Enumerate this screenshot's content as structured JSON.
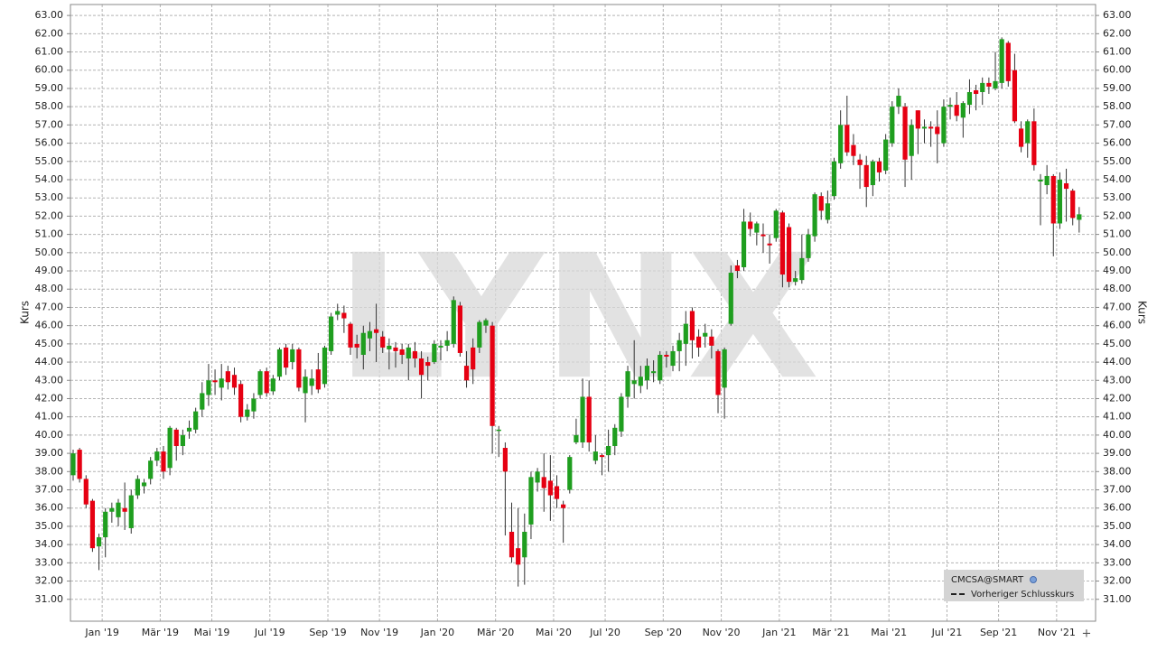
{
  "chart_data": {
    "type": "candlestick",
    "watermark": "LYNX",
    "y_label": "Kurs",
    "y2_label": "Kurs",
    "up_color": "#1f9e1f",
    "down_color": "#e60012",
    "grid": true,
    "legend_position": "lower right",
    "reference_line_label": "Vorheriger Schlusskurs",
    "categories": [
      null,
      null,
      null,
      null,
      "Jan '19",
      null,
      null,
      null,
      null,
      null,
      null,
      null,
      null,
      "Mär '19",
      null,
      null,
      null,
      null,
      null,
      null,
      null,
      "Mai '19",
      null,
      null,
      null,
      null,
      null,
      null,
      null,
      null,
      "Jul '19",
      null,
      null,
      null,
      null,
      null,
      null,
      null,
      null,
      "Sep '19",
      null,
      null,
      null,
      null,
      null,
      null,
      null,
      "Nov '19",
      null,
      null,
      null,
      null,
      null,
      null,
      null,
      null,
      "Jan '20",
      null,
      null,
      null,
      null,
      null,
      null,
      null,
      null,
      "Mär '20",
      null,
      null,
      null,
      null,
      null,
      null,
      null,
      null,
      "Mai '20",
      null,
      null,
      null,
      null,
      null,
      null,
      null,
      "Jul '20",
      null,
      null,
      null,
      null,
      null,
      null,
      null,
      null,
      "Sep '20",
      null,
      null,
      null,
      null,
      null,
      null,
      null,
      null,
      "Nov '20",
      null,
      null,
      null,
      null,
      null,
      null,
      null,
      null,
      "Jan '21",
      null,
      null,
      null,
      null,
      null,
      null,
      null,
      "Mär '21",
      null,
      null,
      null,
      null,
      null,
      null,
      null,
      null,
      "Mai '21",
      null,
      null,
      null,
      null,
      null,
      null,
      null,
      null,
      "Jul '21",
      null,
      null,
      null,
      null,
      null,
      null,
      null,
      "Sep '21",
      null,
      null,
      null,
      null,
      null,
      null,
      null,
      null,
      "Nov '21",
      null,
      null,
      null,
      null
    ],
    "series": [
      {
        "name": "CMCSA@SMART",
        "open": [
          37.8,
          39.2,
          37.6,
          36.4,
          33.9,
          34.4,
          35.8,
          35.5,
          36.0,
          34.9,
          36.7,
          37.2,
          37.6,
          38.6,
          39.1,
          38.2,
          40.3,
          39.4,
          40.2,
          40.3,
          41.4,
          42.2,
          43.0,
          42.6,
          43.5,
          43.3,
          42.8,
          41.0,
          41.3,
          42.2,
          43.5,
          42.4,
          43.2,
          44.8,
          44.0,
          44.7,
          42.3,
          42.7,
          43.6,
          42.8,
          44.6,
          46.6,
          46.7,
          46.1,
          45.0,
          44.4,
          45.3,
          45.8,
          45.4,
          44.7,
          44.8,
          44.7,
          44.2,
          44.6,
          44.2,
          44.0,
          44.0,
          44.8,
          44.9,
          45.0,
          47.1,
          43.8,
          44.8,
          44.8,
          46.0,
          46.0,
          40.3,
          39.3,
          34.7,
          33.8,
          33.3,
          35.1,
          37.4,
          37.7,
          37.5,
          37.2,
          36.2,
          37.0,
          39.6,
          39.6,
          42.1,
          38.6,
          38.9,
          38.9,
          39.4,
          40.2,
          42.1,
          42.8,
          42.7,
          43.0,
          43.4,
          43.0,
          44.4,
          43.8,
          44.6,
          45.0,
          46.8,
          45.4,
          45.4,
          45.4,
          44.6,
          42.6,
          46.1,
          49.3,
          49.2,
          51.7,
          51.1,
          51.0,
          50.5,
          50.8,
          52.2,
          51.4,
          48.4,
          48.5,
          49.7,
          50.9,
          53.1,
          51.8,
          53.1,
          54.9,
          57.0,
          55.9,
          55.1,
          54.8,
          53.7,
          55.0,
          54.5,
          56.0,
          58.0,
          58.0,
          55.3,
          57.8,
          56.8,
          56.9,
          56.9,
          56.0,
          58.0,
          58.1,
          57.4,
          58.1,
          58.9,
          58.8,
          59.3,
          59.0,
          59.3,
          61.5,
          60.0,
          56.8,
          56.0,
          57.2,
          53.9,
          53.7,
          54.2,
          51.6,
          53.8,
          53.4,
          51.8
        ],
        "high": [
          39.2,
          39.3,
          37.8,
          36.5,
          34.6,
          36.0,
          36.3,
          36.5,
          37.4,
          37.0,
          37.8,
          37.6,
          38.8,
          39.3,
          39.4,
          40.5,
          40.4,
          40.3,
          40.8,
          41.5,
          42.9,
          43.9,
          43.6,
          43.9,
          43.8,
          43.7,
          43.0,
          41.7,
          42.3,
          43.6,
          43.7,
          43.3,
          44.8,
          45.0,
          45.0,
          44.8,
          43.6,
          43.6,
          44.5,
          44.9,
          46.7,
          47.2,
          47.1,
          46.2,
          45.5,
          46.0,
          46.2,
          47.2,
          45.7,
          45.3,
          45.1,
          45.0,
          45.0,
          45.1,
          44.6,
          44.3,
          45.2,
          45.2,
          45.7,
          47.6,
          47.3,
          44.6,
          45.3,
          46.3,
          46.4,
          46.2,
          40.5,
          39.6,
          36.3,
          36.0,
          35.7,
          38.0,
          38.2,
          39.0,
          38.9,
          37.8,
          36.4,
          38.9,
          40.9,
          43.1,
          43.0,
          40.0,
          39.0,
          40.3,
          40.6,
          42.3,
          43.8,
          45.2,
          43.8,
          44.2,
          44.1,
          44.6,
          44.6,
          44.9,
          45.6,
          46.8,
          47.0,
          45.8,
          46.1,
          45.8,
          44.7,
          44.8,
          49.3,
          49.6,
          52.4,
          52.2,
          51.7,
          51.6,
          51.0,
          52.4,
          52.3,
          51.6,
          49.0,
          51.0,
          51.3,
          53.3,
          53.3,
          53.4,
          55.2,
          57.8,
          58.6,
          56.5,
          55.4,
          55.3,
          55.1,
          55.2,
          56.5,
          58.3,
          59.0,
          58.2,
          57.3,
          57.8,
          57.3,
          57.2,
          57.8,
          58.4,
          58.5,
          58.8,
          58.3,
          59.5,
          59.2,
          59.6,
          59.6,
          61.0,
          61.8,
          61.6,
          60.9,
          57.2,
          57.3,
          57.9,
          54.3,
          54.8,
          54.3,
          54.4,
          54.6,
          53.5,
          52.5
        ],
        "low": [
          37.5,
          37.4,
          36.0,
          33.6,
          32.6,
          33.3,
          35.2,
          35.0,
          34.8,
          34.6,
          36.5,
          36.8,
          37.3,
          38.3,
          37.6,
          37.8,
          38.6,
          38.9,
          39.8,
          40.1,
          41.0,
          41.6,
          42.2,
          41.9,
          42.5,
          42.2,
          40.7,
          40.8,
          40.9,
          42.0,
          42.1,
          42.2,
          43.0,
          43.3,
          43.6,
          42.4,
          40.7,
          42.2,
          42.3,
          42.6,
          44.4,
          46.3,
          45.6,
          44.4,
          44.2,
          43.6,
          44.6,
          44.0,
          44.5,
          43.6,
          43.7,
          43.9,
          43.0,
          43.7,
          42.0,
          43.0,
          43.9,
          44.1,
          44.6,
          44.8,
          44.3,
          42.6,
          42.8,
          44.5,
          45.6,
          39.0,
          38.8,
          34.5,
          33.0,
          31.7,
          31.8,
          34.3,
          36.9,
          35.8,
          35.3,
          36.0,
          34.1,
          36.8,
          39.5,
          39.3,
          39.1,
          38.4,
          37.8,
          38.0,
          38.9,
          39.9,
          41.5,
          42.0,
          42.3,
          42.5,
          42.9,
          42.8,
          43.7,
          43.5,
          43.5,
          43.8,
          44.2,
          44.3,
          44.8,
          44.2,
          41.2,
          40.9,
          46.0,
          48.6,
          49.0,
          50.9,
          50.4,
          50.0,
          49.4,
          50.6,
          48.1,
          48.1,
          48.2,
          48.3,
          49.5,
          50.6,
          51.8,
          51.6,
          52.9,
          54.6,
          55.3,
          54.8,
          53.5,
          52.5,
          53.1,
          53.9,
          54.3,
          55.8,
          57.6,
          53.6,
          54.0,
          55.4,
          56.0,
          55.8,
          54.9,
          55.8,
          57.3,
          57.2,
          56.3,
          57.6,
          57.8,
          58.1,
          58.7,
          58.9,
          59.0,
          59.1,
          57.1,
          55.5,
          55.2,
          54.5,
          51.5,
          53.2,
          49.8,
          51.3,
          51.7,
          51.5,
          51.1
        ],
        "close": [
          39.0,
          37.6,
          36.2,
          33.8,
          34.4,
          35.8,
          36.0,
          36.3,
          35.8,
          36.7,
          37.6,
          37.4,
          38.6,
          39.1,
          38.0,
          40.4,
          39.4,
          40.0,
          40.4,
          41.3,
          42.3,
          43.0,
          42.9,
          43.1,
          42.9,
          42.6,
          41.0,
          41.4,
          42.0,
          43.5,
          42.3,
          43.1,
          44.7,
          43.7,
          44.7,
          42.6,
          43.2,
          43.1,
          42.5,
          44.8,
          46.5,
          46.8,
          46.4,
          44.8,
          44.8,
          45.6,
          45.7,
          45.6,
          44.8,
          44.9,
          44.6,
          44.4,
          44.8,
          44.2,
          43.3,
          43.8,
          45.0,
          44.9,
          45.2,
          47.4,
          44.5,
          43.0,
          43.6,
          46.2,
          46.3,
          40.5,
          40.3,
          38.0,
          33.3,
          32.9,
          34.7,
          37.7,
          38.0,
          37.1,
          36.7,
          36.5,
          36.0,
          38.8,
          40.0,
          42.1,
          39.6,
          39.1,
          38.8,
          39.4,
          40.4,
          42.1,
          43.5,
          43.0,
          43.2,
          43.8,
          43.5,
          44.4,
          44.3,
          44.6,
          45.2,
          46.1,
          45.2,
          44.8,
          45.6,
          44.9,
          42.2,
          44.7,
          48.9,
          49.0,
          51.7,
          51.3,
          51.6,
          50.9,
          50.4,
          52.3,
          48.8,
          48.4,
          48.6,
          49.7,
          51.0,
          53.2,
          52.3,
          52.7,
          55.0,
          57.0,
          55.5,
          55.3,
          54.8,
          53.6,
          55.0,
          54.4,
          56.2,
          58.0,
          58.6,
          55.1,
          57.0,
          56.8,
          56.9,
          56.8,
          56.5,
          58.0,
          58.1,
          57.5,
          58.2,
          58.8,
          58.7,
          59.3,
          59.1,
          59.4,
          61.7,
          59.4,
          57.2,
          55.8,
          57.2,
          54.8,
          54.0,
          54.2,
          51.6,
          54.0,
          53.5,
          51.9,
          52.1
        ]
      }
    ],
    "ylim": [
      29.8,
      63.6
    ],
    "yticks": [
      {
        "value": 31,
        "label": "31.00"
      },
      {
        "value": 32,
        "label": "32.00"
      },
      {
        "value": 33,
        "label": "33.00"
      },
      {
        "value": 34,
        "label": "34.00"
      },
      {
        "value": 35,
        "label": "35.00"
      },
      {
        "value": 36,
        "label": "36.00"
      },
      {
        "value": 37,
        "label": "37.00"
      },
      {
        "value": 38,
        "label": "38.00"
      },
      {
        "value": 39,
        "label": "39.00"
      },
      {
        "value": 40,
        "label": "40.00"
      },
      {
        "value": 41,
        "label": "41.00"
      },
      {
        "value": 42,
        "label": "42.00"
      },
      {
        "value": 43,
        "label": "43.00"
      },
      {
        "value": 44,
        "label": "44.00"
      },
      {
        "value": 45,
        "label": "45.00"
      },
      {
        "value": 46,
        "label": "46.00"
      },
      {
        "value": 47,
        "label": "47.00"
      },
      {
        "value": 48,
        "label": "48.00"
      },
      {
        "value": 49,
        "label": "49.00"
      },
      {
        "value": 50,
        "label": "50.00"
      },
      {
        "value": 51,
        "label": "51.00"
      },
      {
        "value": 52,
        "label": "52.00"
      },
      {
        "value": 53,
        "label": "53.00"
      },
      {
        "value": 54,
        "label": "54.00"
      },
      {
        "value": 55,
        "label": "55.00"
      },
      {
        "value": 56,
        "label": "56.00"
      },
      {
        "value": 57,
        "label": "57.00"
      },
      {
        "value": 58,
        "label": "58.00"
      },
      {
        "value": 59,
        "label": "59.00"
      },
      {
        "value": 60,
        "label": "60.00"
      },
      {
        "value": 61,
        "label": "61.00"
      },
      {
        "value": 62,
        "label": "62.00"
      },
      {
        "value": 63,
        "label": "63.00"
      }
    ],
    "y2lim": [
      29.8,
      63.6
    ],
    "y2ticks": [
      {
        "value": 31,
        "label": "31.00"
      },
      {
        "value": 32,
        "label": "32.00"
      },
      {
        "value": 33,
        "label": "33.00"
      },
      {
        "value": 34,
        "label": "34.00"
      },
      {
        "value": 35,
        "label": "35.00"
      },
      {
        "value": 36,
        "label": "36.00"
      },
      {
        "value": 37,
        "label": "37.00"
      },
      {
        "value": 38,
        "label": "38.00"
      },
      {
        "value": 39,
        "label": "39.00"
      },
      {
        "value": 40,
        "label": "40.00"
      },
      {
        "value": 41,
        "label": "41.00"
      },
      {
        "value": 42,
        "label": "42.00"
      },
      {
        "value": 43,
        "label": "43.00"
      },
      {
        "value": 44,
        "label": "44.00"
      },
      {
        "value": 45,
        "label": "45.00"
      },
      {
        "value": 46,
        "label": "46.00"
      },
      {
        "value": 47,
        "label": "47.00"
      },
      {
        "value": 48,
        "label": "48.00"
      },
      {
        "value": 49,
        "label": "49.00"
      },
      {
        "value": 50,
        "label": "50.00"
      },
      {
        "value": 51,
        "label": "51.00"
      },
      {
        "value": 52,
        "label": "52.00"
      },
      {
        "value": 53,
        "label": "53.00"
      },
      {
        "value": 54,
        "label": "54.00"
      },
      {
        "value": 55,
        "label": "55.00"
      },
      {
        "value": 56,
        "label": "56.00"
      },
      {
        "value": 57,
        "label": "57.00"
      },
      {
        "value": 58,
        "label": "58.00"
      },
      {
        "value": 59,
        "label": "59.00"
      },
      {
        "value": 60,
        "label": "60.00"
      },
      {
        "value": 61,
        "label": "61.00"
      },
      {
        "value": 62,
        "label": "62.00"
      },
      {
        "value": 63,
        "label": "63.00"
      }
    ]
  }
}
